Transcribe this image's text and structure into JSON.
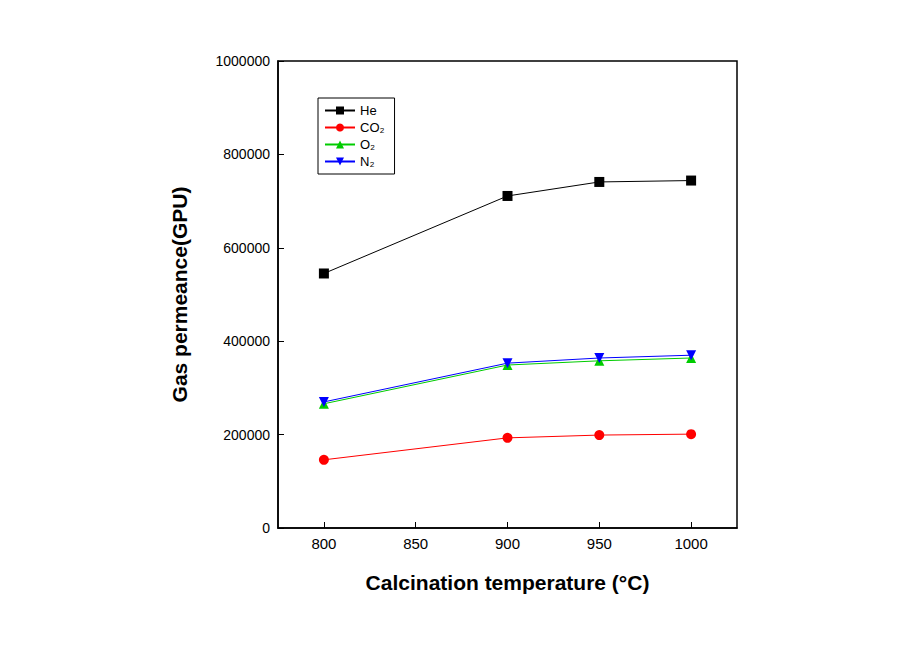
{
  "chart_data": {
    "type": "line",
    "xlabel": "Calcination temperature (°C)",
    "ylabel": "Gas permeance(GPU)",
    "x": [
      800,
      900,
      950,
      1000
    ],
    "series": [
      {
        "name": "He",
        "color": "#000000",
        "marker": "square",
        "values": [
          545000,
          711000,
          741000,
          744000
        ]
      },
      {
        "name": "CO₂",
        "color": "#ff0000",
        "marker": "circle",
        "values": [
          146000,
          193000,
          199000,
          201000
        ]
      },
      {
        "name": "O₂",
        "color": "#00cc00",
        "marker": "triangle-up",
        "values": [
          266000,
          349000,
          358000,
          364000
        ]
      },
      {
        "name": "N₂",
        "color": "#0000ff",
        "marker": "triangle-down",
        "values": [
          270000,
          353000,
          364000,
          370000
        ]
      }
    ],
    "xlim": [
      775,
      1025
    ],
    "xticks": [
      800,
      850,
      900,
      950,
      1000
    ],
    "ylim": [
      0,
      1000000
    ],
    "yticks": [
      0,
      200000,
      400000,
      600000,
      800000,
      1000000
    ],
    "grid": false,
    "legend": "upper left"
  }
}
